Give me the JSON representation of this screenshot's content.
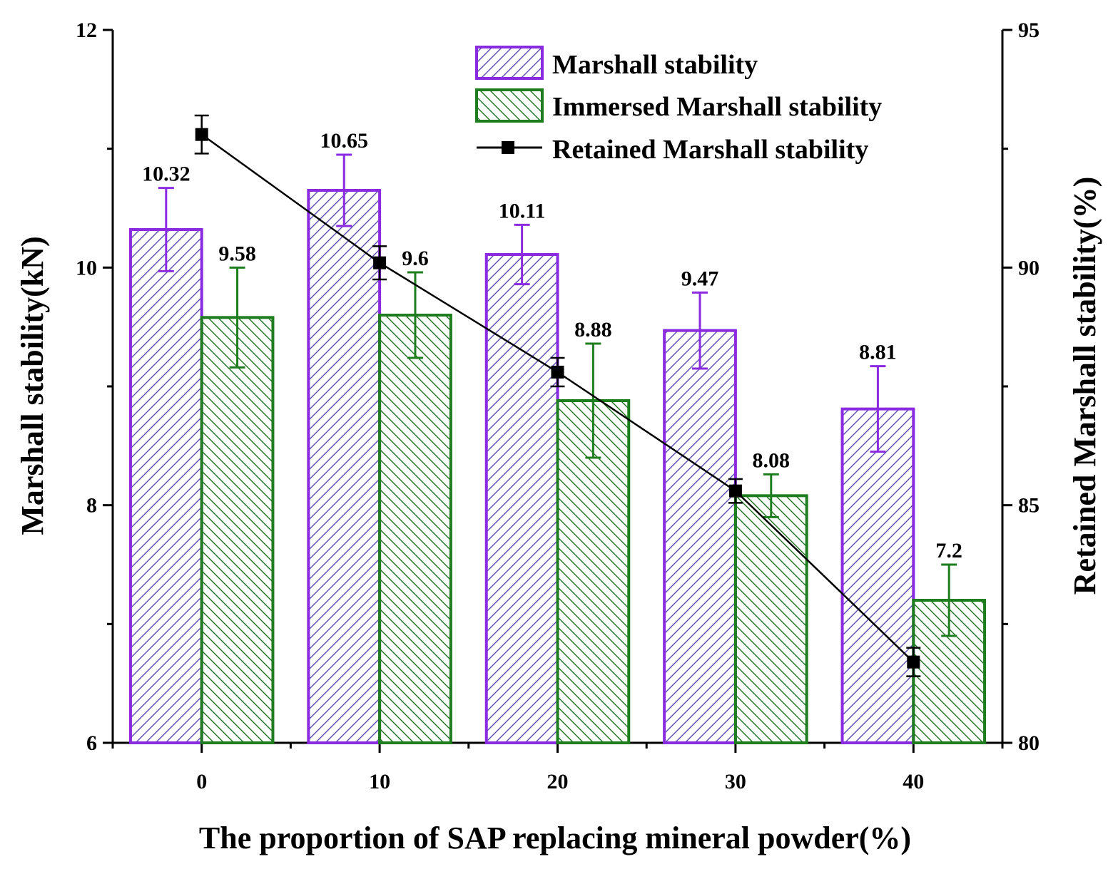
{
  "chart_data": {
    "type": "bar",
    "categories": [
      "0",
      "10",
      "20",
      "30",
      "40"
    ],
    "x_values": [
      0,
      10,
      20,
      30,
      40
    ],
    "xlabel": "The proportion of SAP replacing mineral powder(%)",
    "ylabel": "Marshall stability(kN)",
    "y2label": "Retained Marshall stability(%)",
    "ylim": [
      6,
      12
    ],
    "y2lim": [
      80,
      95
    ],
    "xlim": [
      -5,
      45
    ],
    "y_ticks": [
      "6",
      "8",
      "10",
      "12"
    ],
    "y2_ticks": [
      "80",
      "85",
      "90",
      "95"
    ],
    "x_ticks": [
      "0",
      "10",
      "20",
      "30",
      "40"
    ],
    "series": [
      {
        "name": "Marshall stability",
        "kind": "bar",
        "axis": "left",
        "color": "#8a2be2",
        "values": [
          10.32,
          10.65,
          10.11,
          9.47,
          8.81
        ],
        "labels": [
          "10.32",
          "10.65",
          "10.11",
          "9.47",
          "8.81"
        ],
        "errors": [
          0.35,
          0.3,
          0.25,
          0.32,
          0.36
        ]
      },
      {
        "name": "Immersed Marshall stability",
        "kind": "bar",
        "axis": "left",
        "color": "#1e7d1e",
        "values": [
          9.58,
          9.6,
          8.88,
          8.08,
          7.2
        ],
        "labels": [
          "9.58",
          "9.6",
          "8.88",
          "8.08",
          "7.2"
        ],
        "errors": [
          0.42,
          0.36,
          0.48,
          0.18,
          0.3
        ]
      },
      {
        "name": "Retained Marshall stability",
        "kind": "line",
        "axis": "right",
        "color": "#000000",
        "values": [
          92.8,
          90.1,
          87.8,
          85.3,
          81.7
        ],
        "errors": [
          0.4,
          0.35,
          0.3,
          0.25,
          0.3
        ]
      }
    ],
    "legend_position": "top-right"
  }
}
